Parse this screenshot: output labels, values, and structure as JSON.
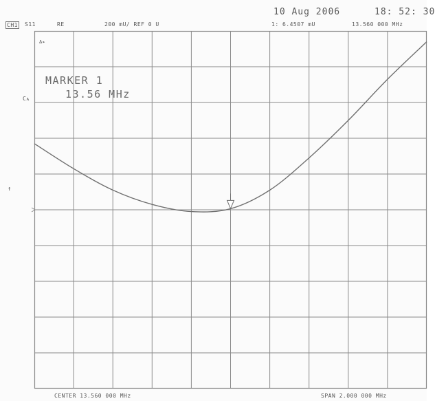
{
  "header": {
    "date": "10 Aug 2006",
    "time": "18: 52: 30",
    "channel": "CH1",
    "parameter": "S11",
    "format": "RE",
    "scale": "200 mU/ REF 0 U",
    "marker_readout_value": "1: 6.4507 mU",
    "marker_readout_freq": "13.560 000 MHz"
  },
  "side_labels": {
    "top_left": "Cᴀ",
    "reference_marker": "↑"
  },
  "annotations": {
    "marker_title": "MARKER  1",
    "marker_freq": "13.56  MHz",
    "top_corner": "Δ▸"
  },
  "footer": {
    "center": "CENTER  13.560 000 MHz",
    "span": "SPAN   2.000 000 MHz"
  },
  "colors": {
    "grid": "#8a8a8a",
    "trace": "#6f6f6f",
    "text": "#555555"
  },
  "chart_data": {
    "type": "line",
    "title": "",
    "xlabel": "",
    "ylabel": "",
    "x_center_mhz": 13.56,
    "x_span_mhz": 2.0,
    "xlim": [
      12.56,
      14.56
    ],
    "ylim": [
      -1000,
      1000
    ],
    "y_units": "mU",
    "reference_value": 0,
    "grid": true,
    "x_divisions": 10,
    "y_divisions": 10,
    "series": [
      {
        "values": [
          {
            "x": 12.56,
            "y": 370
          },
          {
            "x": 12.76,
            "y": 230
          },
          {
            "x": 12.96,
            "y": 110
          },
          {
            "x": 13.16,
            "y": 30
          },
          {
            "x": 13.36,
            "y": -10
          },
          {
            "x": 13.56,
            "y": 6
          },
          {
            "x": 13.76,
            "y": 110
          },
          {
            "x": 13.96,
            "y": 290
          },
          {
            "x": 14.16,
            "y": 500
          },
          {
            "x": 14.36,
            "y": 730
          },
          {
            "x": 14.56,
            "y": 940
          }
        ]
      }
    ],
    "marker": {
      "x": 13.56,
      "y": 6.4507
    }
  }
}
